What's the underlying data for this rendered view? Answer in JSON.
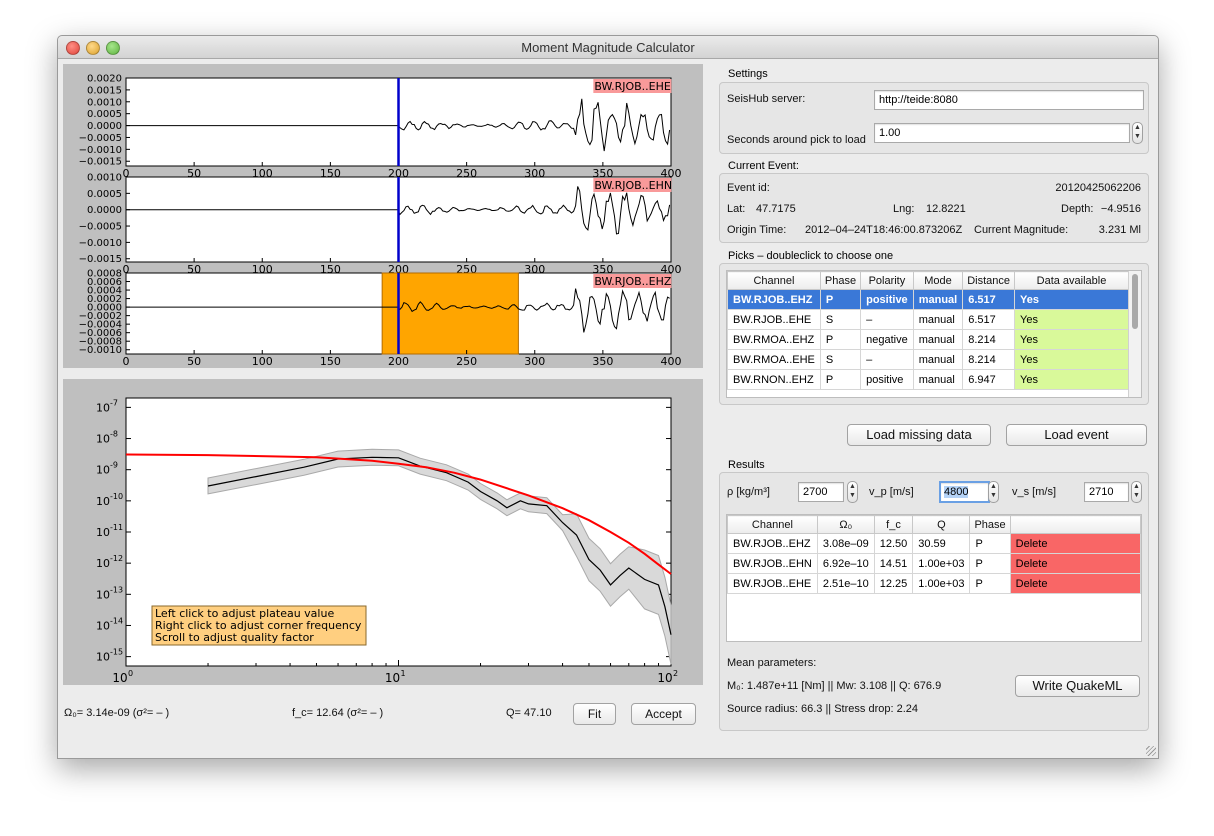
{
  "window": {
    "title": "Moment Magnitude Calculator"
  },
  "traces": [
    {
      "label": "BW.RJOB..EHE",
      "yticks": [
        "0.0020",
        "0.0015",
        "0.0010",
        "0.0005",
        "0.0000",
        "−0.0005",
        "−0.0010",
        "−0.0015"
      ],
      "ylim": [
        -0.0017,
        0.002
      ]
    },
    {
      "label": "BW.RJOB..EHN",
      "yticks": [
        "0.0010",
        "0.0005",
        "0.0000",
        "−0.0005",
        "−0.0010",
        "−0.0015"
      ],
      "ylim": [
        -0.0016,
        0.001
      ]
    },
    {
      "label": "BW.RJOB..EHZ",
      "yticks": [
        "0.0008",
        "0.0006",
        "0.0004",
        "0.0002",
        "0.0000",
        "−0.0002",
        "−0.0004",
        "−0.0006",
        "−0.0008",
        "−0.0010"
      ],
      "ylim": [
        -0.0011,
        0.0008
      ]
    }
  ],
  "trace_xticks": [
    "0",
    "50",
    "100",
    "150",
    "200",
    "250",
    "300",
    "350",
    "400"
  ],
  "trace_pick_x": 200,
  "trace_window": [
    188,
    288
  ],
  "spectrum": {
    "yticks": [
      "10",
      "10",
      "10",
      "10",
      "10",
      "10",
      "10",
      "10",
      "10"
    ],
    "yexp": [
      "-7",
      "-8",
      "-9",
      "-10",
      "-11",
      "-12",
      "-13",
      "-14",
      "-15"
    ],
    "xticks": [
      "10",
      "10",
      "10"
    ],
    "xexp": [
      "0",
      "1",
      "2"
    ],
    "help_lines": [
      "Left click to adjust plateau value",
      "Right click to adjust corner frequency",
      "Scroll to adjust quality factor"
    ]
  },
  "chart_data": {
    "type": "line",
    "title": "",
    "xlabel": "",
    "ylabel": "",
    "xscale": "log",
    "yscale": "log",
    "xlim": [
      1,
      100
    ],
    "ylim": [
      5e-16,
      2e-07
    ],
    "series": [
      {
        "x": [
          2.0,
          3.0,
          4.5,
          6.0,
          8.0,
          10.0,
          12.0,
          15.0,
          18.0,
          20.0,
          23.0,
          25.0,
          28.0,
          30.0,
          35.0,
          40.0,
          45.0,
          50.0,
          55.0,
          60.0,
          65.0,
          70.0,
          80.0,
          90.0,
          95.0,
          100.0
        ],
        "values": [
          3e-10,
          6e-10,
          1.2e-09,
          2.2e-09,
          2.5e-09,
          2.4e-09,
          1.3e-09,
          8e-10,
          4e-10,
          2e-10,
          1e-10,
          6e-11,
          1e-10,
          8e-11,
          7e-11,
          2e-11,
          8e-12,
          1.3e-12,
          6e-13,
          2e-13,
          4e-13,
          7e-13,
          3e-13,
          2e-13,
          4e-14,
          5e-15
        ]
      },
      {
        "x": [
          1,
          2,
          5,
          8,
          10,
          12.64,
          16,
          20,
          30,
          40,
          50,
          60,
          70,
          80,
          90,
          100
        ],
        "values": [
          3.08e-09,
          2.95e-09,
          2.5e-09,
          1.95e-09,
          1.55e-09,
          1.2e-09,
          8e-10,
          4.8e-10,
          1.5e-10,
          5.8e-11,
          2.4e-11,
          1e-11,
          4.5e-12,
          2e-12,
          9e-13,
          4.5e-13
        ]
      }
    ]
  },
  "bottom_bar": {
    "omega": "Ω₀=  3.14e-09  (σ²=  –  )",
    "fc": "f_c=  12.64  (σ²=  –  )",
    "q": "Q=  47.10",
    "fit_button": "Fit",
    "accept_button": "Accept"
  },
  "settings": {
    "title": "Settings",
    "server_label": "SeisHub server:",
    "server_value": "http://teide:8080",
    "seconds_label": "Seconds around pick to load",
    "seconds_value": "1.00"
  },
  "event": {
    "title": "Current Event:",
    "id_label": "Event id:",
    "id_value": "20120425062206",
    "lat_label": "Lat:",
    "lat_value": "47.7175",
    "lng_label": "Lng:",
    "lng_value": "12.8221",
    "depth_label": "Depth:",
    "depth_value": "−4.9516",
    "origin_label": "Origin Time:",
    "origin_value": "2012–04–24T18:46:00.873206Z",
    "mag_label": "Current Magnitude:",
    "mag_value": "3.231 Ml"
  },
  "picks": {
    "title": "Picks – doubleclick to choose one",
    "columns": [
      "Channel",
      "Phase",
      "Polarity",
      "Mode",
      "Distance",
      "Data available"
    ],
    "rows": [
      [
        "BW.RJOB..EHZ",
        "P",
        "positive",
        "manual",
        "6.517",
        "Yes"
      ],
      [
        "BW.RJOB..EHE",
        "S",
        "–",
        "manual",
        "6.517",
        "Yes"
      ],
      [
        "BW.RMOA..EHZ",
        "P",
        "negative",
        "manual",
        "8.214",
        "Yes"
      ],
      [
        "BW.RMOA..EHE",
        "S",
        "–",
        "manual",
        "8.214",
        "Yes"
      ],
      [
        "BW.RNON..EHZ",
        "P",
        "positive",
        "manual",
        "6.947",
        "Yes"
      ]
    ]
  },
  "buttons": {
    "load_missing": "Load missing data",
    "load_event": "Load event"
  },
  "results": {
    "title": "Results",
    "rho_label": "ρ [kg/m³]",
    "rho_value": "2700",
    "vp_label": "v_p [m/s]",
    "vp_value": "4800",
    "vs_label": "v_s [m/s]",
    "vs_value": "2710",
    "columns": [
      "Channel",
      "Ω₀",
      "f_c",
      "Q",
      "Phase",
      ""
    ],
    "rows": [
      [
        "BW.RJOB..EHZ",
        "3.08e–09",
        "12.50",
        "30.59",
        "P",
        "Delete"
      ],
      [
        "BW.RJOB..EHN",
        "6.92e–10",
        "14.51",
        "1.00e+03",
        "P",
        "Delete"
      ],
      [
        "BW.RJOB..EHE",
        "2.51e–10",
        "12.25",
        "1.00e+03",
        "P",
        "Delete"
      ]
    ],
    "mean_title": "Mean parameters:",
    "mean_line1": "M₀: 1.487e+11 [Nm] || Mw: 3.108 || Q: 676.9",
    "mean_line2": "Source radius: 66.3 || Stress drop: 2.24",
    "write_button": "Write QuakeML"
  },
  "colors": {
    "selection": "#3a78d7",
    "available": "#d9f99a",
    "delete": "#f96666",
    "window": "#ffa500",
    "pick": "#0000cc",
    "model": "#ff0000"
  }
}
